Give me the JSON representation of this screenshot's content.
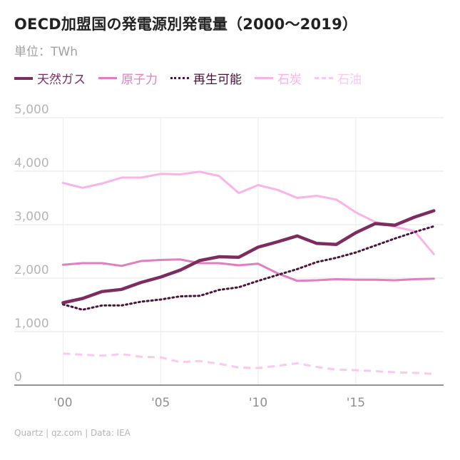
{
  "header": {
    "title": "OECD加盟国の発電源別発電量（2000〜2019）",
    "subtitle": "単位：TWh"
  },
  "legend": [
    {
      "name": "天然ガス",
      "color": "#7d2c60",
      "style": "solid-thick"
    },
    {
      "name": "原子力",
      "color": "#e07fc0",
      "style": "solid"
    },
    {
      "name": "再生可能",
      "color": "#4a1438",
      "style": "dotted"
    },
    {
      "name": "石炭",
      "color": "#f9b3e6",
      "style": "solid"
    },
    {
      "name": "石油",
      "color": "#fbc8ee",
      "style": "dashed"
    }
  ],
  "footer": {
    "source": "Quartz | qz.com | Data: IEA"
  },
  "chart_data": {
    "type": "line",
    "x": [
      2000,
      2001,
      2002,
      2003,
      2004,
      2005,
      2006,
      2007,
      2008,
      2009,
      2010,
      2011,
      2012,
      2013,
      2014,
      2015,
      2016,
      2017,
      2018,
      2019
    ],
    "x_ticks": [
      2000,
      2005,
      2010,
      2015
    ],
    "x_tick_labels": [
      "'00",
      "'05",
      "'10",
      "'15"
    ],
    "xlim": [
      1997.5,
      2019.5
    ],
    "ylim": [
      0,
      5000
    ],
    "y_ticks": [
      0,
      1000,
      2000,
      3000,
      4000,
      5000
    ],
    "y_tick_labels": [
      "0",
      "1,000",
      "2,000",
      "3,000",
      "4,000",
      "5,000"
    ],
    "grid": true,
    "legend_position": "top",
    "series": [
      {
        "name": "天然ガス",
        "color": "#7d2c60",
        "style": "solid-thick",
        "values": [
          1540,
          1620,
          1750,
          1790,
          1920,
          2020,
          2150,
          2330,
          2400,
          2390,
          2580,
          2680,
          2790,
          2650,
          2630,
          2850,
          3020,
          2990,
          3140,
          3260
        ]
      },
      {
        "name": "原子力",
        "color": "#e07fc0",
        "style": "solid",
        "values": [
          2250,
          2280,
          2280,
          2230,
          2320,
          2340,
          2350,
          2280,
          2280,
          2240,
          2270,
          2090,
          1950,
          1960,
          1980,
          1970,
          1970,
          1960,
          1980,
          1990
        ]
      },
      {
        "name": "再生可能",
        "color": "#4a1438",
        "style": "dotted",
        "values": [
          1510,
          1410,
          1490,
          1490,
          1560,
          1600,
          1660,
          1670,
          1780,
          1830,
          1950,
          2060,
          2170,
          2300,
          2380,
          2480,
          2610,
          2740,
          2860,
          2970
        ]
      },
      {
        "name": "石炭",
        "color": "#f9b3e6",
        "style": "solid",
        "values": [
          3780,
          3690,
          3770,
          3880,
          3880,
          3950,
          3940,
          3990,
          3910,
          3590,
          3740,
          3650,
          3500,
          3540,
          3470,
          3230,
          3050,
          2960,
          2880,
          2450
        ]
      },
      {
        "name": "石油",
        "color": "#fbc8ee",
        "style": "dashed",
        "values": [
          590,
          570,
          550,
          580,
          530,
          520,
          430,
          450,
          400,
          330,
          320,
          360,
          410,
          340,
          290,
          280,
          260,
          240,
          230,
          210
        ]
      }
    ]
  }
}
